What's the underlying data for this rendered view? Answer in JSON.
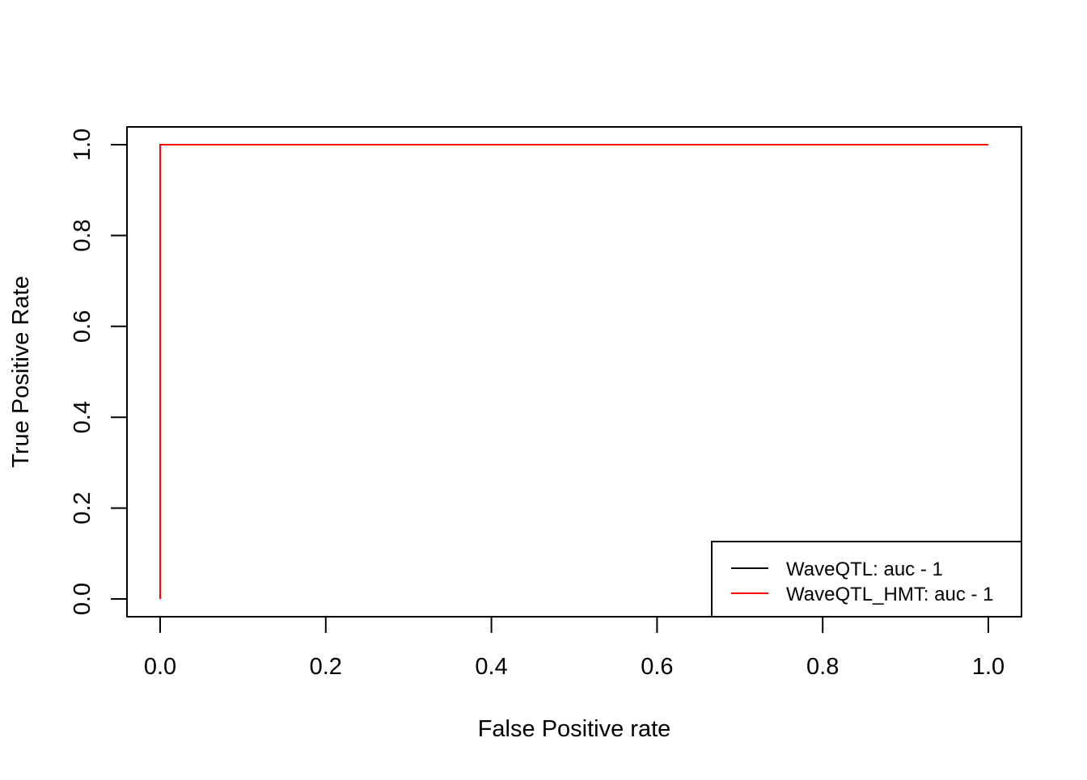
{
  "chart_data": {
    "type": "line",
    "title": "",
    "xlabel": "False Positive rate",
    "ylabel": "True Positive Rate",
    "xlim": [
      0,
      1
    ],
    "ylim": [
      0,
      1
    ],
    "x_ticks": [
      0.0,
      0.2,
      0.4,
      0.6,
      0.8,
      1.0
    ],
    "y_ticks": [
      0.0,
      0.2,
      0.4,
      0.6,
      0.8,
      1.0
    ],
    "x_tick_labels": [
      "0.0",
      "0.2",
      "0.4",
      "0.6",
      "0.8",
      "1.0"
    ],
    "y_tick_labels": [
      "0.0",
      "0.2",
      "0.4",
      "0.6",
      "0.8",
      "1.0"
    ],
    "grid": false,
    "legend_position": "bottom-right",
    "series": [
      {
        "name": "WaveQTL: auc - 1",
        "color": "#000000",
        "x": [
          0.0,
          0.0,
          1.0
        ],
        "y": [
          0.0,
          1.0,
          1.0
        ]
      },
      {
        "name": "WaveQTL_HMT: auc - 1",
        "color": "#ff0000",
        "x": [
          0.0,
          0.0,
          1.0
        ],
        "y": [
          0.0,
          1.0,
          1.0
        ]
      }
    ]
  }
}
